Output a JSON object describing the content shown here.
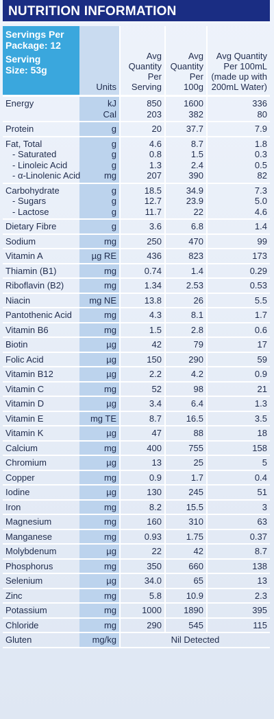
{
  "title": "NUTRITION INFORMATION",
  "header": {
    "servings_line1": "Servings Per",
    "servings_line2": "Package: 12",
    "serving_size_line1": "Serving",
    "serving_size_line2": "Size: 53g",
    "units": "Units",
    "per_serving_l1": "Avg",
    "per_serving_l2": "Quantity",
    "per_serving_l3": "Per",
    "per_serving_l4": "Serving",
    "per_100g_l1": "Avg",
    "per_100g_l2": "Quantity",
    "per_100g_l3": "Per",
    "per_100g_l4": "100g",
    "per_100ml_l1": "Avg Quantity",
    "per_100ml_l2": "Per 100mL",
    "per_100ml_l3": "(made up with",
    "per_100ml_l4": "200mL Water)"
  },
  "rows": [
    {
      "names": [
        "Energy",
        ""
      ],
      "units": [
        "kJ",
        "Cal"
      ],
      "serving": [
        "850",
        "203"
      ],
      "per100g": [
        "1600",
        "382"
      ],
      "per100ml": [
        "336",
        "80"
      ]
    },
    {
      "names": [
        "Protein"
      ],
      "units": [
        "g"
      ],
      "serving": [
        "20"
      ],
      "per100g": [
        "37.7"
      ],
      "per100ml": [
        "7.9"
      ]
    },
    {
      "names": [
        "Fat, Total",
        "- Saturated",
        "- Linoleic Acid",
        "- α-Linolenic Acid"
      ],
      "units": [
        "g",
        "g",
        "g",
        "mg"
      ],
      "serving": [
        "4.6",
        "0.8",
        "1.3",
        "207"
      ],
      "per100g": [
        "8.7",
        "1.5",
        "2.4",
        "390"
      ],
      "per100ml": [
        "1.8",
        "0.3",
        "0.5",
        "82"
      ]
    },
    {
      "names": [
        "Carbohydrate",
        "- Sugars",
        "- Lactose"
      ],
      "units": [
        "g",
        "g",
        "g"
      ],
      "serving": [
        "18.5",
        "12.7",
        "11.7"
      ],
      "per100g": [
        "34.9",
        "23.9",
        "22"
      ],
      "per100ml": [
        "7.3",
        "5.0",
        "4.6"
      ]
    },
    {
      "names": [
        "Dietary Fibre"
      ],
      "units": [
        "g"
      ],
      "serving": [
        "3.6"
      ],
      "per100g": [
        "6.8"
      ],
      "per100ml": [
        "1.4"
      ]
    },
    {
      "names": [
        "Sodium"
      ],
      "units": [
        "mg"
      ],
      "serving": [
        "250"
      ],
      "per100g": [
        "470"
      ],
      "per100ml": [
        "99"
      ]
    },
    {
      "names": [
        "Vitamin A"
      ],
      "units": [
        "µg RE"
      ],
      "serving": [
        "436"
      ],
      "per100g": [
        "823"
      ],
      "per100ml": [
        "173"
      ]
    },
    {
      "names": [
        "Thiamin (B1)"
      ],
      "units": [
        "mg"
      ],
      "serving": [
        "0.74"
      ],
      "per100g": [
        "1.4"
      ],
      "per100ml": [
        "0.29"
      ]
    },
    {
      "names": [
        "Riboflavin (B2)"
      ],
      "units": [
        "mg"
      ],
      "serving": [
        "1.34"
      ],
      "per100g": [
        "2.53"
      ],
      "per100ml": [
        "0.53"
      ]
    },
    {
      "names": [
        "Niacin"
      ],
      "units": [
        "mg NE"
      ],
      "serving": [
        "13.8"
      ],
      "per100g": [
        "26"
      ],
      "per100ml": [
        "5.5"
      ]
    },
    {
      "names": [
        "Pantothenic Acid"
      ],
      "units": [
        "mg"
      ],
      "serving": [
        "4.3"
      ],
      "per100g": [
        "8.1"
      ],
      "per100ml": [
        "1.7"
      ]
    },
    {
      "names": [
        "Vitamin B6"
      ],
      "units": [
        "mg"
      ],
      "serving": [
        "1.5"
      ],
      "per100g": [
        "2.8"
      ],
      "per100ml": [
        "0.6"
      ]
    },
    {
      "names": [
        "Biotin"
      ],
      "units": [
        "µg"
      ],
      "serving": [
        "42"
      ],
      "per100g": [
        "79"
      ],
      "per100ml": [
        "17"
      ]
    },
    {
      "names": [
        "Folic Acid"
      ],
      "units": [
        "µg"
      ],
      "serving": [
        "150"
      ],
      "per100g": [
        "290"
      ],
      "per100ml": [
        "59"
      ]
    },
    {
      "names": [
        "Vitamin B12"
      ],
      "units": [
        "µg"
      ],
      "serving": [
        "2.2"
      ],
      "per100g": [
        "4.2"
      ],
      "per100ml": [
        "0.9"
      ]
    },
    {
      "names": [
        "Vitamin C"
      ],
      "units": [
        "mg"
      ],
      "serving": [
        "52"
      ],
      "per100g": [
        "98"
      ],
      "per100ml": [
        "21"
      ]
    },
    {
      "names": [
        "Vitamin D"
      ],
      "units": [
        "µg"
      ],
      "serving": [
        "3.4"
      ],
      "per100g": [
        "6.4"
      ],
      "per100ml": [
        "1.3"
      ]
    },
    {
      "names": [
        "Vitamin E"
      ],
      "units": [
        "mg TE"
      ],
      "serving": [
        "8.7"
      ],
      "per100g": [
        "16.5"
      ],
      "per100ml": [
        "3.5"
      ]
    },
    {
      "names": [
        "Vitamin K"
      ],
      "units": [
        "µg"
      ],
      "serving": [
        "47"
      ],
      "per100g": [
        "88"
      ],
      "per100ml": [
        "18"
      ]
    },
    {
      "names": [
        "Calcium"
      ],
      "units": [
        "mg"
      ],
      "serving": [
        "400"
      ],
      "per100g": [
        "755"
      ],
      "per100ml": [
        "158"
      ]
    },
    {
      "names": [
        "Chromium"
      ],
      "units": [
        "µg"
      ],
      "serving": [
        "13"
      ],
      "per100g": [
        "25"
      ],
      "per100ml": [
        "5"
      ]
    },
    {
      "names": [
        "Copper"
      ],
      "units": [
        "mg"
      ],
      "serving": [
        "0.9"
      ],
      "per100g": [
        "1.7"
      ],
      "per100ml": [
        "0.4"
      ]
    },
    {
      "names": [
        "Iodine"
      ],
      "units": [
        "µg"
      ],
      "serving": [
        "130"
      ],
      "per100g": [
        "245"
      ],
      "per100ml": [
        "51"
      ]
    },
    {
      "names": [
        "Iron"
      ],
      "units": [
        "mg"
      ],
      "serving": [
        "8.2"
      ],
      "per100g": [
        "15.5"
      ],
      "per100ml": [
        "3"
      ]
    },
    {
      "names": [
        "Magnesium"
      ],
      "units": [
        "mg"
      ],
      "serving": [
        "160"
      ],
      "per100g": [
        "310"
      ],
      "per100ml": [
        "63"
      ]
    },
    {
      "names": [
        "Manganese"
      ],
      "units": [
        "mg"
      ],
      "serving": [
        "0.93"
      ],
      "per100g": [
        "1.75"
      ],
      "per100ml": [
        "0.37"
      ]
    },
    {
      "names": [
        "Molybdenum"
      ],
      "units": [
        "µg"
      ],
      "serving": [
        "22"
      ],
      "per100g": [
        "42"
      ],
      "per100ml": [
        "8.7"
      ]
    },
    {
      "names": [
        "Phosphorus"
      ],
      "units": [
        "mg"
      ],
      "serving": [
        "350"
      ],
      "per100g": [
        "660"
      ],
      "per100ml": [
        "138"
      ]
    },
    {
      "names": [
        "Selenium"
      ],
      "units": [
        "µg"
      ],
      "serving": [
        "34.0"
      ],
      "per100g": [
        "65"
      ],
      "per100ml": [
        "13"
      ]
    },
    {
      "names": [
        "Zinc"
      ],
      "units": [
        "mg"
      ],
      "serving": [
        "5.8"
      ],
      "per100g": [
        "10.9"
      ],
      "per100ml": [
        "2.3"
      ]
    },
    {
      "names": [
        "Potassium"
      ],
      "units": [
        "mg"
      ],
      "serving": [
        "1000"
      ],
      "per100g": [
        "1890"
      ],
      "per100ml": [
        "395"
      ]
    },
    {
      "names": [
        "Chloride"
      ],
      "units": [
        "mg"
      ],
      "serving": [
        "290"
      ],
      "per100g": [
        "545"
      ],
      "per100ml": [
        "115"
      ]
    }
  ],
  "gluten": {
    "name": "Gluten",
    "unit": "mg/kg",
    "value": "Nil Detected"
  },
  "colors": {
    "title_bg": "#1a2d83",
    "header_name_bg": "#3aa7dd",
    "unit_col_bg": "#bcd3ed",
    "panel_bg": "#e3eaf5",
    "text": "#1f2b4c"
  }
}
